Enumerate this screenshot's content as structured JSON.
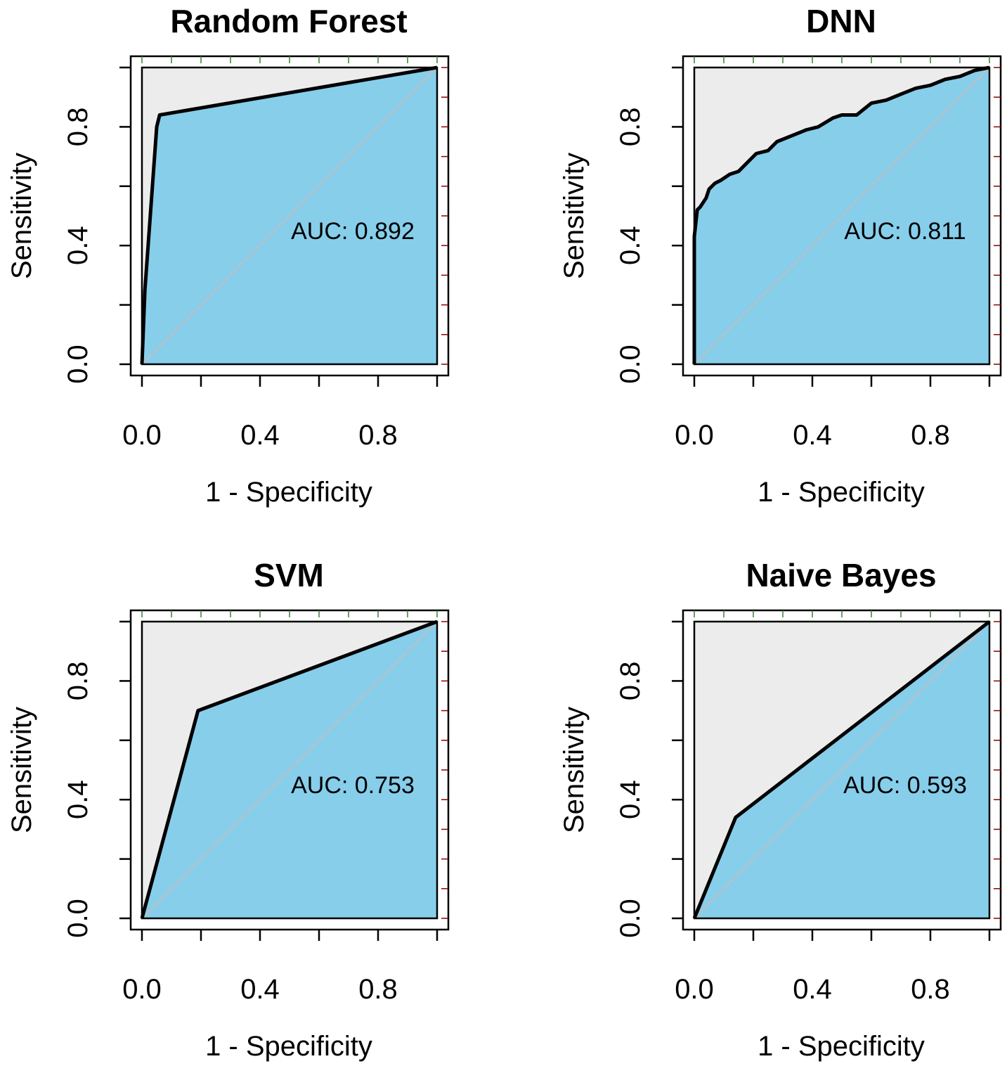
{
  "colors": {
    "auc_fill": "#87ceeb",
    "background_region": "#ececec",
    "curve": "#000000",
    "diagonal": "#bfbfbf",
    "tick_mark_accent": "#8b0000"
  },
  "chart_data": [
    {
      "type": "area",
      "title": "Random Forest",
      "xlabel": "1 - Specificity",
      "ylabel": "Sensitivity",
      "xlim": [
        0,
        1
      ],
      "ylim": [
        0,
        1
      ],
      "xticks": [
        "0.0",
        "0.4",
        "0.8"
      ],
      "yticks": [
        "0.0",
        "0.4",
        "0.8"
      ],
      "annotation": "AUC: 0.892",
      "auc": 0.892,
      "x": [
        0,
        0.01,
        0.05,
        0.06,
        1.0
      ],
      "y": [
        0,
        0.25,
        0.8,
        0.84,
        1.0
      ]
    },
    {
      "type": "area",
      "title": "DNN",
      "xlabel": "1 - Specificity",
      "ylabel": "Sensitivity",
      "xlim": [
        0,
        1
      ],
      "ylim": [
        0,
        1
      ],
      "xticks": [
        "0.0",
        "0.4",
        "0.8"
      ],
      "yticks": [
        "0.0",
        "0.4",
        "0.8"
      ],
      "annotation": "AUC: 0.811",
      "auc": 0.811,
      "x": [
        0,
        0.0,
        0.01,
        0.02,
        0.04,
        0.05,
        0.07,
        0.09,
        0.12,
        0.15,
        0.18,
        0.21,
        0.25,
        0.28,
        0.33,
        0.38,
        0.42,
        0.47,
        0.5,
        0.55,
        0.6,
        0.65,
        0.7,
        0.75,
        0.8,
        0.85,
        0.9,
        0.95,
        1.0
      ],
      "y": [
        0,
        0.43,
        0.52,
        0.53,
        0.56,
        0.59,
        0.61,
        0.62,
        0.64,
        0.65,
        0.68,
        0.71,
        0.72,
        0.75,
        0.77,
        0.79,
        0.8,
        0.83,
        0.84,
        0.84,
        0.88,
        0.89,
        0.91,
        0.93,
        0.94,
        0.96,
        0.97,
        0.99,
        1.0
      ]
    },
    {
      "type": "area",
      "title": "SVM",
      "xlabel": "1 - Specificity",
      "ylabel": "Sensitivity",
      "xlim": [
        0,
        1
      ],
      "ylim": [
        0,
        1
      ],
      "xticks": [
        "0.0",
        "0.4",
        "0.8"
      ],
      "yticks": [
        "0.0",
        "0.4",
        "0.8"
      ],
      "annotation": "AUC: 0.753",
      "auc": 0.753,
      "x": [
        0,
        0.19,
        1.0
      ],
      "y": [
        0,
        0.7,
        1.0
      ]
    },
    {
      "type": "area",
      "title": "Naive Bayes",
      "xlabel": "1 - Specificity",
      "ylabel": "Sensitivity",
      "xlim": [
        0,
        1
      ],
      "ylim": [
        0,
        1
      ],
      "xticks": [
        "0.0",
        "0.4",
        "0.8"
      ],
      "yticks": [
        "0.0",
        "0.4",
        "0.8"
      ],
      "annotation": "AUC: 0.593",
      "auc": 0.593,
      "x": [
        0,
        0.14,
        1.0
      ],
      "y": [
        0,
        0.34,
        1.0
      ]
    }
  ]
}
